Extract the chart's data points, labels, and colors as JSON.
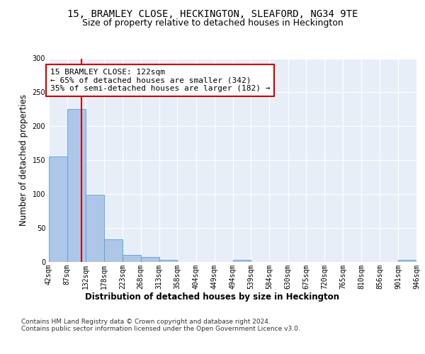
{
  "title": "15, BRAMLEY CLOSE, HECKINGTON, SLEAFORD, NG34 9TE",
  "subtitle": "Size of property relative to detached houses in Heckington",
  "xlabel": "Distribution of detached houses by size in Heckington",
  "ylabel": "Number of detached properties",
  "bar_color": "#aec6e8",
  "bar_edge_color": "#5a9fd4",
  "bar_heights": [
    155,
    225,
    99,
    33,
    10,
    7,
    3,
    0,
    0,
    0,
    3,
    0,
    0,
    0,
    0,
    0,
    0,
    0,
    0,
    3
  ],
  "bin_edges": [
    42,
    87,
    132,
    178,
    223,
    268,
    313,
    358,
    404,
    449,
    494,
    539,
    584,
    630,
    675,
    720,
    765,
    810,
    856,
    901,
    946
  ],
  "tick_labels": [
    "42sqm",
    "87sqm",
    "132sqm",
    "178sqm",
    "223sqm",
    "268sqm",
    "313sqm",
    "358sqm",
    "404sqm",
    "449sqm",
    "494sqm",
    "539sqm",
    "584sqm",
    "630sqm",
    "675sqm",
    "720sqm",
    "765sqm",
    "810sqm",
    "856sqm",
    "901sqm",
    "946sqm"
  ],
  "vline_x": 122,
  "vline_color": "#cc0000",
  "annotation_text": "15 BRAMLEY CLOSE: 122sqm\n← 65% of detached houses are smaller (342)\n35% of semi-detached houses are larger (182) →",
  "annotation_box_color": "#ffffff",
  "annotation_border_color": "#cc0000",
  "ylim": [
    0,
    300
  ],
  "yticks": [
    0,
    50,
    100,
    150,
    200,
    250,
    300
  ],
  "background_color": "#e8eef8",
  "footer_text": "Contains HM Land Registry data © Crown copyright and database right 2024.\nContains public sector information licensed under the Open Government Licence v3.0.",
  "grid_color": "#ffffff",
  "title_fontsize": 10,
  "subtitle_fontsize": 9,
  "axis_label_fontsize": 8.5,
  "tick_fontsize": 7,
  "annotation_fontsize": 8,
  "footer_fontsize": 6.5
}
